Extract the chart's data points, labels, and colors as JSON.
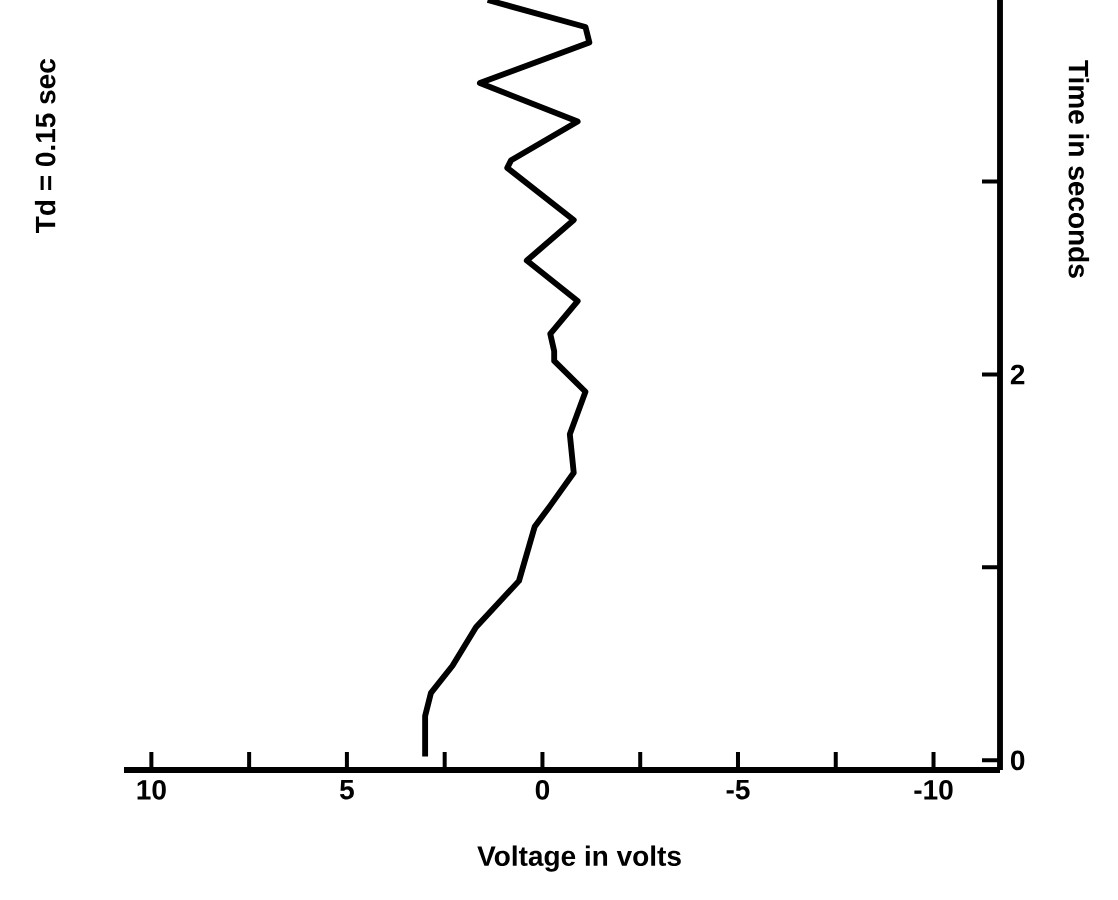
{
  "chart_data": {
    "type": "line",
    "title": "Td = 0.15 sec",
    "xlabel": "Voltage in volts",
    "ylabel": "Time in seconds",
    "x": [
      3.0,
      3.0,
      2.85,
      2.3,
      1.7,
      0.6,
      0.2,
      -0.2,
      -0.8,
      -0.7,
      -1.1,
      -0.3,
      -0.3,
      -0.2,
      -0.9,
      0.4,
      -0.8,
      0.9,
      0.8,
      -0.9,
      1.6,
      -1.2,
      -1.1,
      1.4
    ],
    "series": [
      {
        "color": "#000000",
        "values": [
          0.02,
          0.23,
          0.35,
          0.49,
          0.69,
          0.93,
          1.21,
          1.32,
          1.49,
          1.69,
          1.91,
          2.07,
          2.12,
          2.21,
          2.38,
          2.59,
          2.8,
          3.07,
          3.11,
          3.31,
          3.51,
          3.72,
          3.8,
          3.94
        ]
      }
    ],
    "xlim": [
      10.7,
      -11.7
    ],
    "ylim": [
      -0.05,
      3.94
    ],
    "xticks": [
      10,
      {
        "value": 7.5,
        "label": null
      },
      5,
      {
        "value": 2.5,
        "label": null
      },
      0,
      {
        "value": -2.5,
        "label": null
      },
      -5,
      {
        "value": -7.5,
        "label": null
      },
      -10
    ],
    "yticks": [
      0,
      {
        "value": 1,
        "label": null
      },
      2,
      {
        "value": 3,
        "label": null
      }
    ]
  }
}
